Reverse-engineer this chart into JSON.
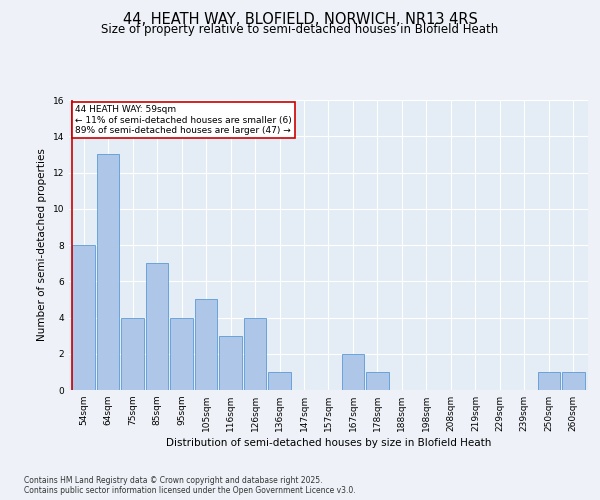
{
  "title": "44, HEATH WAY, BLOFIELD, NORWICH, NR13 4RS",
  "subtitle": "Size of property relative to semi-detached houses in Blofield Heath",
  "xlabel": "Distribution of semi-detached houses by size in Blofield Heath",
  "ylabel": "Number of semi-detached properties",
  "categories": [
    "54sqm",
    "64sqm",
    "75sqm",
    "85sqm",
    "95sqm",
    "105sqm",
    "116sqm",
    "126sqm",
    "136sqm",
    "147sqm",
    "157sqm",
    "167sqm",
    "178sqm",
    "188sqm",
    "198sqm",
    "208sqm",
    "219sqm",
    "229sqm",
    "239sqm",
    "250sqm",
    "260sqm"
  ],
  "values": [
    8,
    13,
    4,
    7,
    4,
    5,
    3,
    4,
    1,
    0,
    0,
    2,
    1,
    0,
    0,
    0,
    0,
    0,
    0,
    1,
    1
  ],
  "bar_color": "#aec6e8",
  "bar_edge_color": "#5b9bd5",
  "annotation_text": "44 HEATH WAY: 59sqm\n← 11% of semi-detached houses are smaller (6)\n89% of semi-detached houses are larger (47) →",
  "annotation_box_color": "#ffffff",
  "annotation_box_edge": "#cc0000",
  "property_line_color": "#cc0000",
  "ylim": [
    0,
    16
  ],
  "yticks": [
    0,
    2,
    4,
    6,
    8,
    10,
    12,
    14,
    16
  ],
  "footer_line1": "Contains HM Land Registry data © Crown copyright and database right 2025.",
  "footer_line2": "Contains public sector information licensed under the Open Government Licence v3.0.",
  "title_fontsize": 10.5,
  "subtitle_fontsize": 8.5,
  "axis_label_fontsize": 7.5,
  "tick_fontsize": 6.5,
  "annotation_fontsize": 6.5,
  "footer_fontsize": 5.5,
  "background_color": "#eef2f8",
  "plot_bg_color": "#e4ecf5"
}
